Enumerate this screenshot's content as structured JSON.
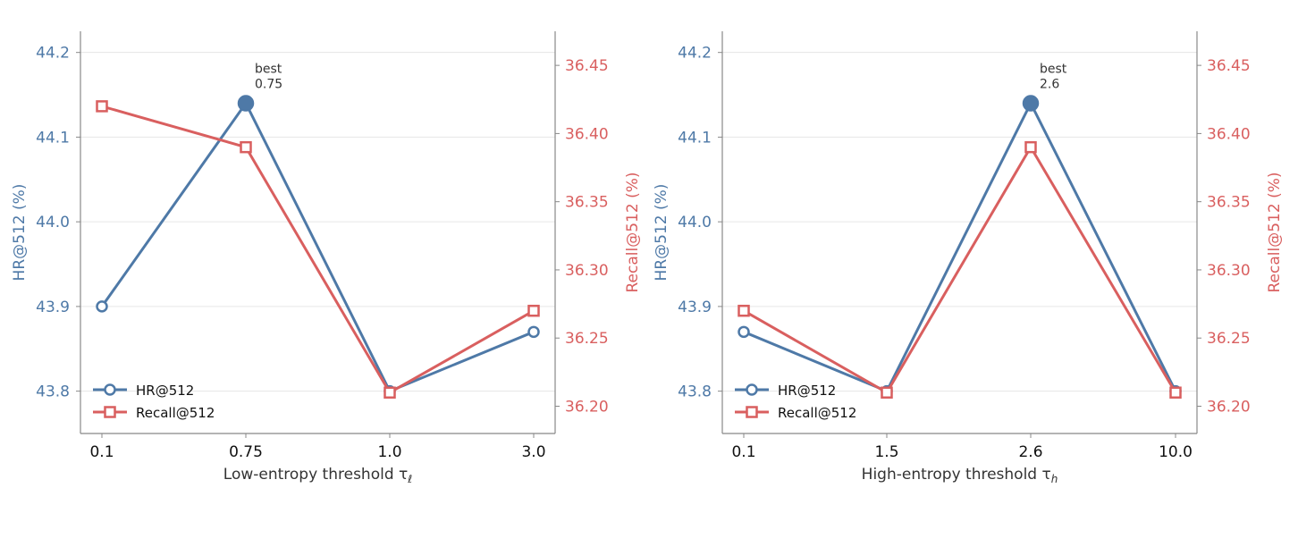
{
  "colors": {
    "hr": "#4e79a7",
    "recall": "#d95f5f",
    "axis": "#888888",
    "grid": "#e6e6e6",
    "text": "#333333"
  },
  "chart_data": [
    {
      "type": "line",
      "title": "",
      "xlabel": "Low-entropy threshold τ",
      "xlabel_sub": "ℓ",
      "categories": [
        "0.1",
        "0.75",
        "1.0",
        "3.0"
      ],
      "y_left": {
        "label": "HR@512 (%)",
        "ylim": [
          43.75,
          44.225
        ],
        "ticks": [
          43.8,
          43.9,
          44.0,
          44.1,
          44.2
        ],
        "tick_labels": [
          "43.8",
          "43.9",
          "44.0",
          "44.1",
          "44.2"
        ]
      },
      "y_right": {
        "label": "Recall@512 (%)",
        "ylim": [
          36.18,
          36.475
        ],
        "ticks": [
          36.2,
          36.25,
          36.3,
          36.35,
          36.4,
          36.45
        ],
        "tick_labels": [
          "36.20",
          "36.25",
          "36.30",
          "36.35",
          "36.40",
          "36.45"
        ]
      },
      "series": [
        {
          "name": "HR@512",
          "axis": "left",
          "marker": "circle",
          "values": [
            43.9,
            44.14,
            43.8,
            43.87
          ]
        },
        {
          "name": "Recall@512",
          "axis": "right",
          "marker": "square",
          "values": [
            36.42,
            36.39,
            36.21,
            36.27
          ]
        }
      ],
      "best": {
        "index": 1,
        "label": "best",
        "value": "0.75"
      },
      "legend": "lower-left",
      "grid": "horizontal"
    },
    {
      "type": "line",
      "title": "",
      "xlabel": "High-entropy threshold τ",
      "xlabel_sub": "h",
      "categories": [
        "0.1",
        "1.5",
        "2.6",
        "10.0"
      ],
      "y_left": {
        "label": "HR@512 (%)",
        "ylim": [
          43.75,
          44.225
        ],
        "ticks": [
          43.8,
          43.9,
          44.0,
          44.1,
          44.2
        ],
        "tick_labels": [
          "43.8",
          "43.9",
          "44.0",
          "44.1",
          "44.2"
        ]
      },
      "y_right": {
        "label": "Recall@512 (%)",
        "ylim": [
          36.18,
          36.475
        ],
        "ticks": [
          36.2,
          36.25,
          36.3,
          36.35,
          36.4,
          36.45
        ],
        "tick_labels": [
          "36.20",
          "36.25",
          "36.30",
          "36.35",
          "36.40",
          "36.45"
        ]
      },
      "series": [
        {
          "name": "HR@512",
          "axis": "left",
          "marker": "circle",
          "values": [
            43.87,
            43.8,
            44.14,
            43.8
          ]
        },
        {
          "name": "Recall@512",
          "axis": "right",
          "marker": "square",
          "values": [
            36.27,
            36.21,
            36.39,
            36.21
          ]
        }
      ],
      "best": {
        "index": 2,
        "label": "best",
        "value": "2.6"
      },
      "legend": "lower-left",
      "grid": "horizontal"
    }
  ]
}
